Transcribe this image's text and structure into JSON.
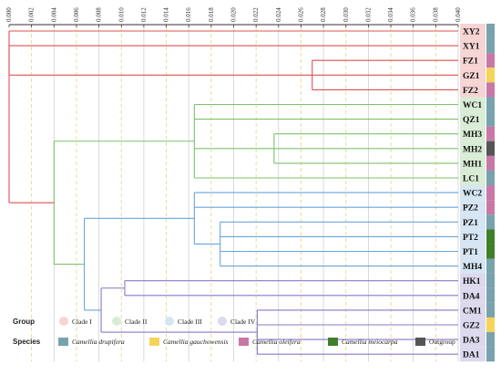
{
  "axis": {
    "ticks": [
      "0.000",
      "0.002",
      "0.004",
      "0.006",
      "0.008",
      "0.010",
      "0.012",
      "0.014",
      "0.016",
      "0.018",
      "0.020",
      "0.022",
      "0.024",
      "0.026",
      "0.028",
      "0.030",
      "0.032",
      "0.034",
      "0.036",
      "0.038",
      "0.040"
    ]
  },
  "leaves": [
    {
      "label": "XY2",
      "clade": "Clade I",
      "species": "Camellia drupifera"
    },
    {
      "label": "XY1",
      "clade": "Clade I",
      "species": "Camellia drupifera"
    },
    {
      "label": "FZ1",
      "clade": "Clade I",
      "species": "Camellia oleifera"
    },
    {
      "label": "GZ1",
      "clade": "Clade I",
      "species": "Camellia gauchowensis"
    },
    {
      "label": "FZ2",
      "clade": "Clade I",
      "species": "Camellia oleifera"
    },
    {
      "label": "WC1",
      "clade": "Clade II",
      "species": "Camellia drupifera"
    },
    {
      "label": "QZ1",
      "clade": "Clade II",
      "species": "Camellia drupifera"
    },
    {
      "label": "MH3",
      "clade": "Clade II",
      "species": "Camellia oleifera"
    },
    {
      "label": "MH2",
      "clade": "Clade II",
      "species": "Outgroup"
    },
    {
      "label": "MH1",
      "clade": "Clade II",
      "species": "Camellia oleifera"
    },
    {
      "label": "LC1",
      "clade": "Clade II",
      "species": "Camellia drupifera"
    },
    {
      "label": "WC2",
      "clade": "Clade III",
      "species": "Camellia oleifera"
    },
    {
      "label": "PZ2",
      "clade": "Clade III",
      "species": "Camellia oleifera"
    },
    {
      "label": "PZ1",
      "clade": "Clade III",
      "species": "Camellia drupifera"
    },
    {
      "label": "PT2",
      "clade": "Clade III",
      "species": "Camellia meiocarpa"
    },
    {
      "label": "PT1",
      "clade": "Clade III",
      "species": "Camellia meiocarpa"
    },
    {
      "label": "MH4",
      "clade": "Clade III",
      "species": "Camellia drupifera"
    },
    {
      "label": "HK1",
      "clade": "Clade IV",
      "species": "Camellia drupifera"
    },
    {
      "label": "DA4",
      "clade": "Clade IV",
      "species": "Camellia drupifera"
    },
    {
      "label": "CM1",
      "clade": "Clade IV",
      "species": "Camellia drupifera"
    },
    {
      "label": "GZ2",
      "clade": "Clade IV",
      "species": "Camellia gauchowensis"
    },
    {
      "label": "DA3",
      "clade": "Clade IV",
      "species": "Camellia drupifera"
    },
    {
      "label": "DA1",
      "clade": "Clade IV",
      "species": "Camellia drupifera"
    }
  ],
  "tree": {
    "h": 0.0,
    "color": "#e05050",
    "children": [
      {
        "leaf": 0
      },
      {
        "h": 0.0,
        "color": "#e05050",
        "children": [
          {
            "leaf": 1
          },
          {
            "h": 0.027,
            "color": "#e05050",
            "children": [
              {
                "leaf": 2
              },
              {
                "leaf": 3
              },
              {
                "leaf": 4
              }
            ]
          }
        ]
      },
      {
        "h": 0.004,
        "color": "#7cc36a",
        "children": [
          {
            "h": 0.0165,
            "color": "#7cc36a",
            "children": [
              {
                "leaf": 5
              },
              {
                "leaf": 6
              },
              {
                "h": 0.0236,
                "color": "#7cc36a",
                "children": [
                  {
                    "leaf": 7
                  },
                  {
                    "leaf": 8
                  },
                  {
                    "leaf": 9
                  }
                ]
              },
              {
                "leaf": 10
              }
            ]
          },
          {
            "h": 0.0067,
            "color": "#6aa4d8",
            "children": [
              {
                "h": 0.0078,
                "color": "#6aa4d8",
                "children": [
                  {
                    "h": 0.0165,
                    "color": "#6aa4d8",
                    "children": [
                      {
                        "leaf": 11
                      },
                      {
                        "leaf": 12
                      },
                      {
                        "h": 0.0188,
                        "color": "#6aa4d8",
                        "children": [
                          {
                            "leaf": 13
                          },
                          {
                            "leaf": 14
                          },
                          {
                            "leaf": 15
                          },
                          {
                            "leaf": 16
                          }
                        ]
                      }
                    ]
                  }
                ]
              },
              {
                "h": 0.0082,
                "color": "#8878c8",
                "children": [
                  {
                    "h": 0.0103,
                    "color": "#8878c8",
                    "children": [
                      {
                        "leaf": 17
                      },
                      {
                        "leaf": 18
                      }
                    ]
                  },
                  {
                    "h": 0.0221,
                    "color": "#8878c8",
                    "children": [
                      {
                        "leaf": 19
                      },
                      {
                        "leaf": 20
                      },
                      {
                        "leaf": 21
                      },
                      {
                        "leaf": 22
                      }
                    ]
                  }
                ]
              }
            ]
          }
        ]
      }
    ]
  },
  "legend": {
    "group_title": "Group",
    "species_title": "Species",
    "groups": [
      {
        "name": "Clade I",
        "color": "#f7d4d4"
      },
      {
        "name": "Clade II",
        "color": "#d9ecd5"
      },
      {
        "name": "Clade III",
        "color": "#d6e5f3"
      },
      {
        "name": "Clade IV",
        "color": "#dcd9ee"
      }
    ],
    "species": [
      {
        "name": "Camellia drupifera",
        "color": "#77a3ad"
      },
      {
        "name": "Camellia gauchowensis",
        "color": "#f5d45a"
      },
      {
        "name": "Camellia oleifera",
        "color": "#c878a6"
      },
      {
        "name": "Camellia meiocarpa",
        "color": "#3f7f2a"
      },
      {
        "name": "Outgroup",
        "color": "#555555"
      }
    ]
  }
}
